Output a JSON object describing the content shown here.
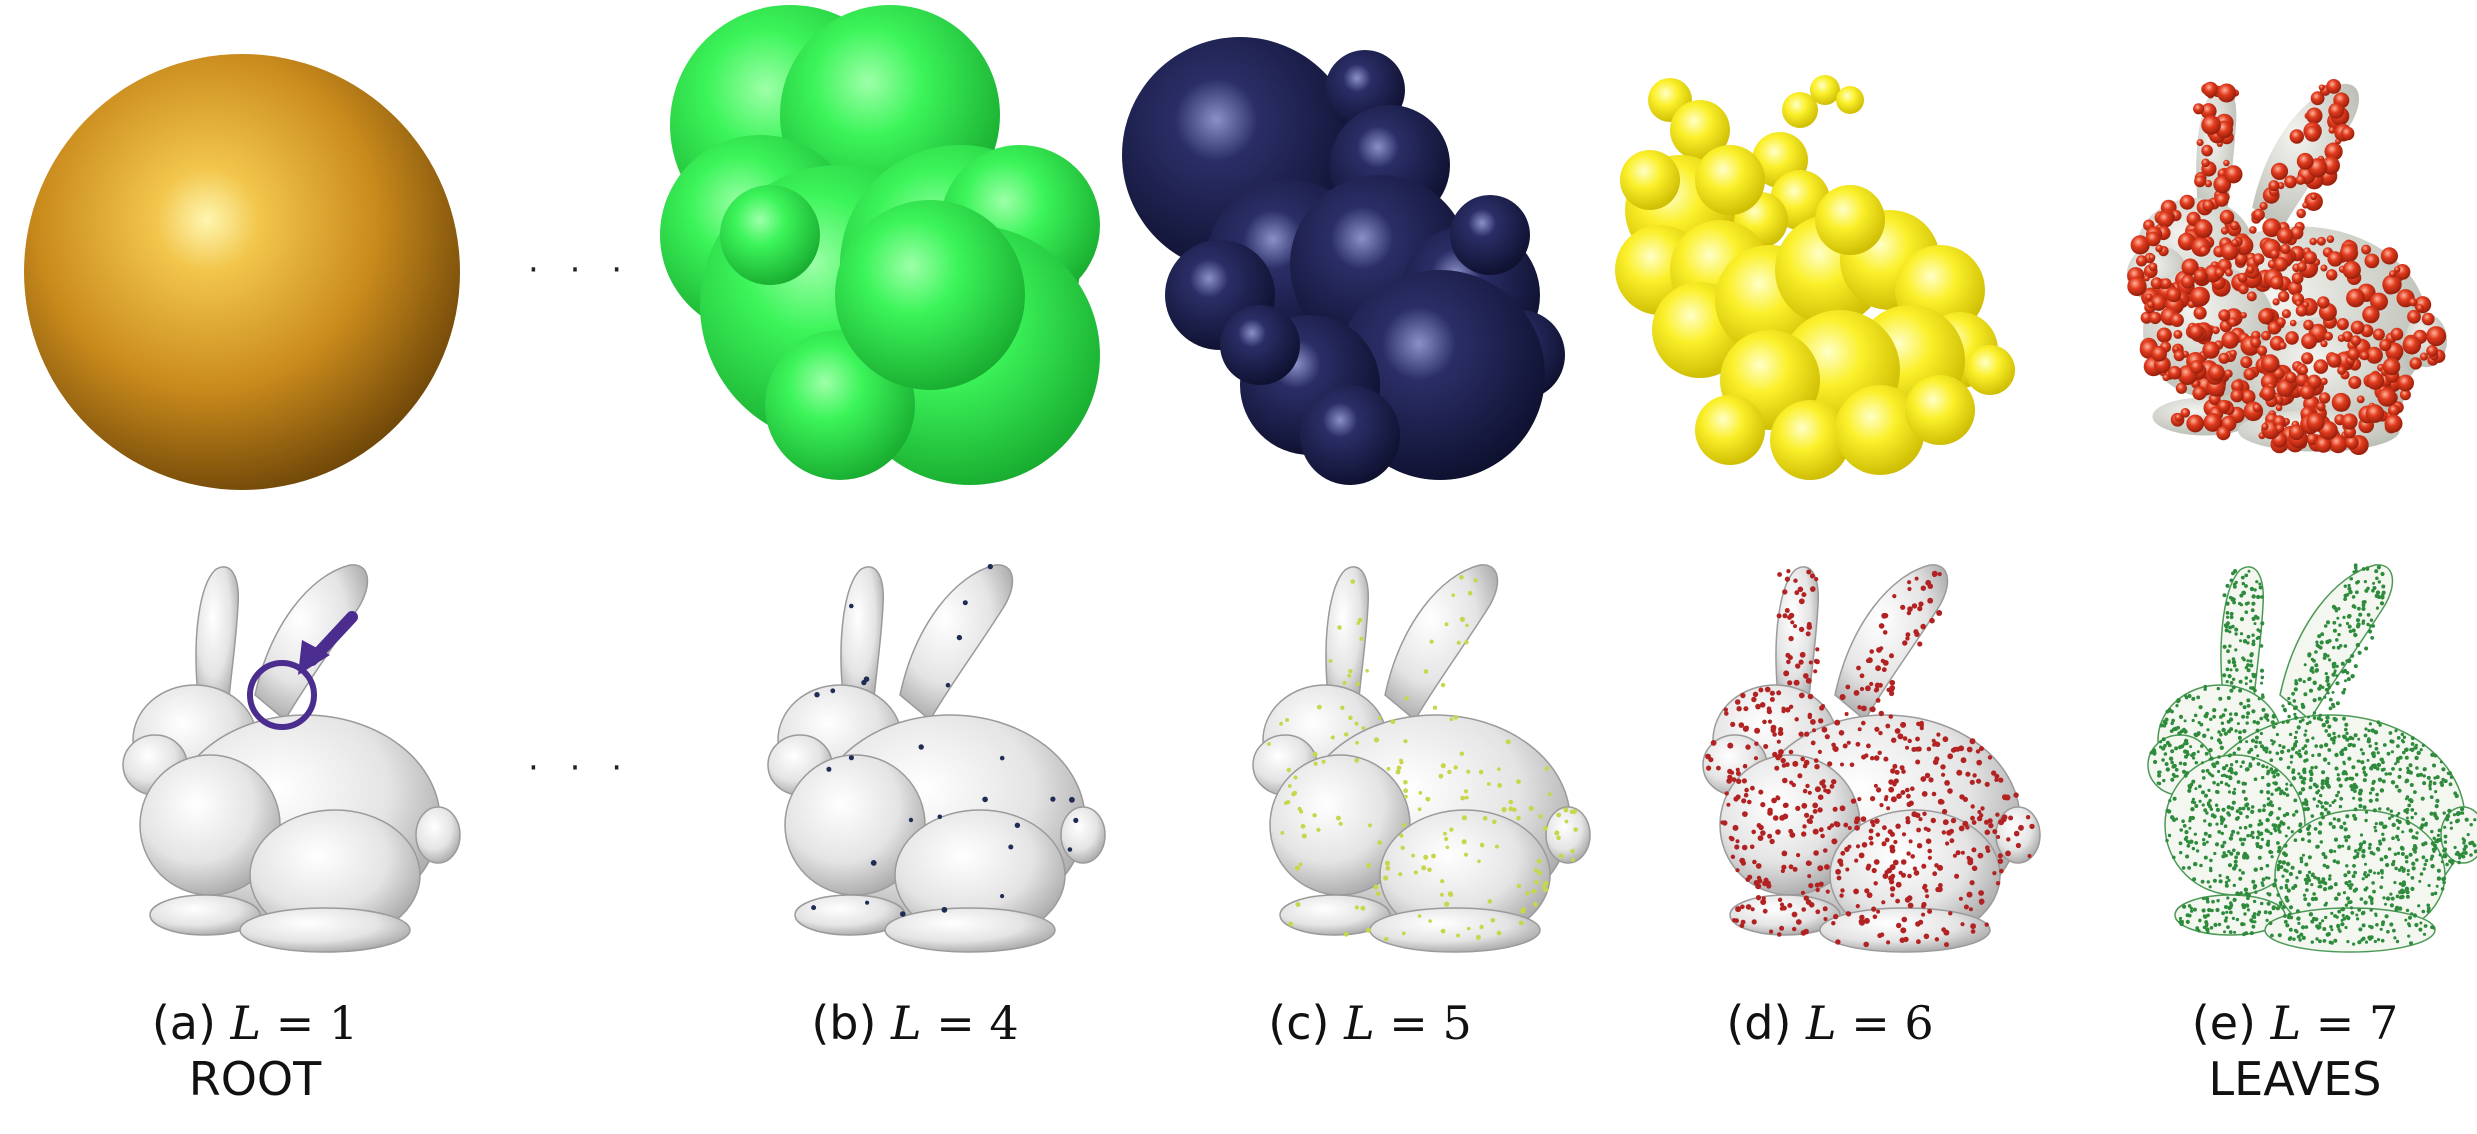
{
  "figure": {
    "ellipsis": "· · ·",
    "columns": [
      {
        "tag": "(a)",
        "var": "L",
        "eq": "=",
        "value": "1",
        "label": "ROOT",
        "sphere_color": "#d99a22",
        "point_color": "#4b2d8f"
      },
      {
        "tag": "(b)",
        "var": "L",
        "eq": "=",
        "value": "4",
        "label": "",
        "sphere_color": "#2df24d",
        "point_color": "#1f2d55"
      },
      {
        "tag": "(c)",
        "var": "L",
        "eq": "=",
        "value": "5",
        "label": "",
        "sphere_color": "#1c1f4e",
        "point_color": "#c8d64a"
      },
      {
        "tag": "(d)",
        "var": "L",
        "eq": "=",
        "value": "6",
        "label": "",
        "sphere_color": "#f6ec1c",
        "point_color": "#b22222"
      },
      {
        "tag": "(e)",
        "var": "L",
        "eq": "=",
        "value": "7",
        "label": "LEAVES",
        "sphere_color": "#d9331c",
        "point_color": "#2e8b3c"
      }
    ],
    "annotation": {
      "circle_color": "#4b2d8f",
      "arrow_color": "#4b2d8f"
    }
  }
}
